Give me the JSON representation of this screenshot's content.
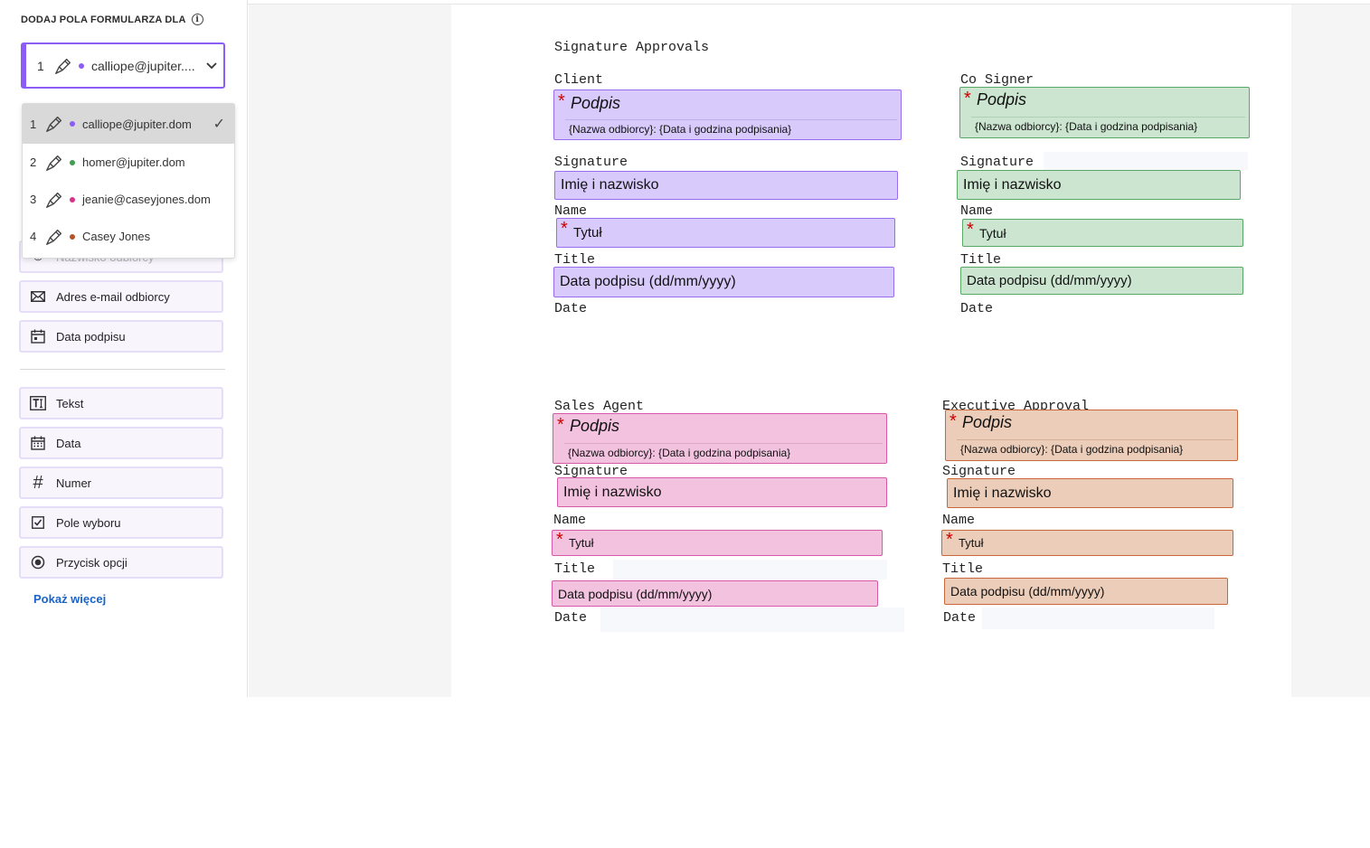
{
  "sidebar": {
    "header": "DODAJ POLA FORMULARZA DLA",
    "selected_recipient": {
      "num": "1",
      "label": "calliope@jupiter...."
    },
    "recipients": [
      {
        "num": "1",
        "label": "calliope@jupiter.dom",
        "color": "#8b5cf6",
        "selected": true
      },
      {
        "num": "2",
        "label": "homer@jupiter.dom",
        "color": "#3f9f4f"
      },
      {
        "num": "3",
        "label": "jeanie@caseyjones.dom",
        "color": "#d6338a"
      },
      {
        "num": "4",
        "label": "Casey Jones",
        "color": "#b5532a"
      }
    ],
    "partially_hidden_field": "Nazwisko odbiorcy",
    "fields_group1": [
      {
        "label": "Adres e-mail odbiorcy",
        "icon": "mail-icon"
      },
      {
        "label": "Data podpisu",
        "icon": "calendar-icon"
      }
    ],
    "fields_group2": [
      {
        "label": "Tekst",
        "icon": "text-icon"
      },
      {
        "label": "Data",
        "icon": "calendar-icon"
      },
      {
        "label": "Numer",
        "icon": "hash-icon"
      },
      {
        "label": "Pole wyboru",
        "icon": "checkbox-icon"
      },
      {
        "label": "Przycisk opcji",
        "icon": "radio-icon"
      }
    ],
    "show_more": "Pokaż więcej"
  },
  "document": {
    "heading": "Signature Approvals",
    "sections": [
      {
        "name": "Client",
        "color": "purple"
      },
      {
        "name": "Co Signer",
        "color": "green"
      },
      {
        "name": "Sales Agent",
        "color": "pink"
      },
      {
        "name": "Executive Approval",
        "color": "orange"
      }
    ],
    "labels": {
      "signature": "Signature",
      "name": "Name",
      "title": "Title",
      "date": "Date"
    },
    "fields": {
      "signature_title": "Podpis",
      "signature_sub": "{Nazwa odbiorcy}: {Data i godzina podpisania}",
      "required_mark": "*",
      "full_name": "Imię i nazwisko",
      "title": "Tytuł",
      "sign_date": "Data podpisu (dd/mm/yyyy)"
    }
  },
  "colors": {
    "purple_fill": "#d8cbfb",
    "purple_border": "#9b6cf0",
    "green_fill": "#cce5d0",
    "green_border": "#58a866",
    "pink_fill": "#f2c2df",
    "pink_border": "#d65aa6",
    "orange_fill": "#ebcdb9",
    "orange_border": "#c8673a",
    "link": "#1a63c9"
  }
}
